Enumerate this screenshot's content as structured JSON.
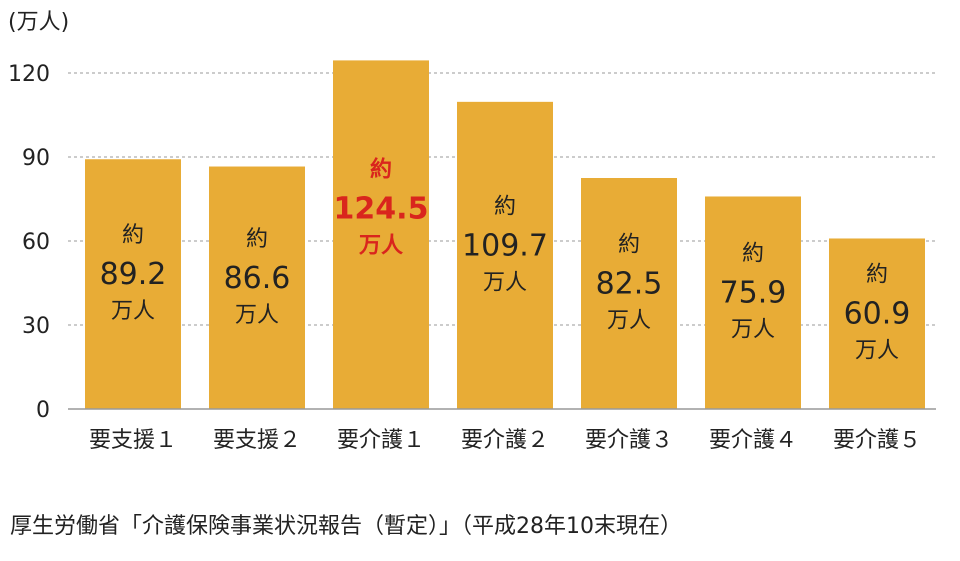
{
  "chart_data": {
    "type": "bar",
    "unit_label": "(万人)",
    "categories": [
      "要支援１",
      "要支援２",
      "要介護１",
      "要介護２",
      "要介護３",
      "要介護４",
      "要介護５"
    ],
    "values": [
      89.2,
      86.6,
      124.5,
      109.7,
      82.5,
      75.9,
      60.9
    ],
    "value_labels": [
      {
        "prefix": "約",
        "value": "89.2",
        "suffix": "万人"
      },
      {
        "prefix": "約",
        "value": "86.6",
        "suffix": "万人"
      },
      {
        "prefix": "約",
        "value": "124.5",
        "suffix": "万人"
      },
      {
        "prefix": "約",
        "value": "109.7",
        "suffix": "万人"
      },
      {
        "prefix": "約",
        "value": "82.5",
        "suffix": "万人"
      },
      {
        "prefix": "約",
        "value": "75.9",
        "suffix": "万人"
      },
      {
        "prefix": "約",
        "value": "60.9",
        "suffix": "万人"
      }
    ],
    "highlight_index": 2,
    "yticks": [
      0,
      30,
      60,
      90,
      120
    ],
    "ylim": [
      0,
      135
    ],
    "grid": true,
    "bar_color": "#E8AC36",
    "highlight_text_color": "#D9251D",
    "label_text_color": "#222222"
  },
  "source": "厚生労働省「介護保険事業状況報告（暫定）」（平成28年10末現在）"
}
